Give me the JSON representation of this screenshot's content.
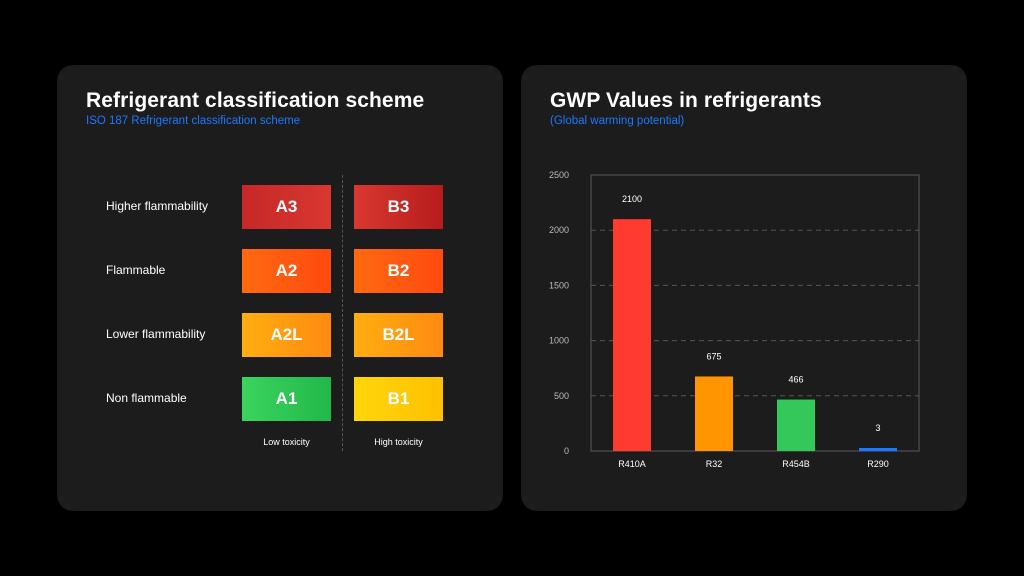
{
  "left_panel": {
    "title": "Refrigerant classification scheme",
    "subtitle": "ISO 187 Refrigerant classification scheme",
    "rows": [
      {
        "label": "Higher flammability",
        "cells": [
          "A3",
          "B3"
        ]
      },
      {
        "label": "Flammable",
        "cells": [
          "A2",
          "B2"
        ]
      },
      {
        "label": "Lower flammability",
        "cells": [
          "A2L",
          "B2L"
        ]
      },
      {
        "label": "Non flammable",
        "cells": [
          "A1",
          "B1"
        ]
      }
    ],
    "columns": [
      "Low toxicity",
      "High toxicity"
    ],
    "colors": {
      "A3": "#c62828",
      "B3": "#c62828",
      "A2": "#ff5a10",
      "B2": "#ff5a10",
      "A2L": "#ff9a10",
      "B2L": "#ff9a10",
      "A1": "#2ec855",
      "B1": "#ffcc00"
    }
  },
  "right_panel": {
    "title": "GWP Values in refrigerants",
    "subtitle": "(Global warming potential)"
  },
  "chart_data": {
    "type": "bar",
    "title": "GWP Values in refrigerants",
    "subtitle": "(Global warming potential)",
    "categories": [
      "R410A",
      "R32",
      "R454B",
      "R290"
    ],
    "values": [
      2100,
      675,
      466,
      3
    ],
    "data_labels": [
      "2100",
      "675",
      "466",
      "3"
    ],
    "colors": [
      "#ff3b30",
      "#ff9500",
      "#34c759",
      "#1e78ff"
    ],
    "ylim": [
      0,
      2500
    ],
    "yticks": [
      0,
      500,
      1000,
      1500,
      2000,
      2500
    ],
    "grid": true,
    "legend": "none",
    "xlabel": "",
    "ylabel": ""
  }
}
